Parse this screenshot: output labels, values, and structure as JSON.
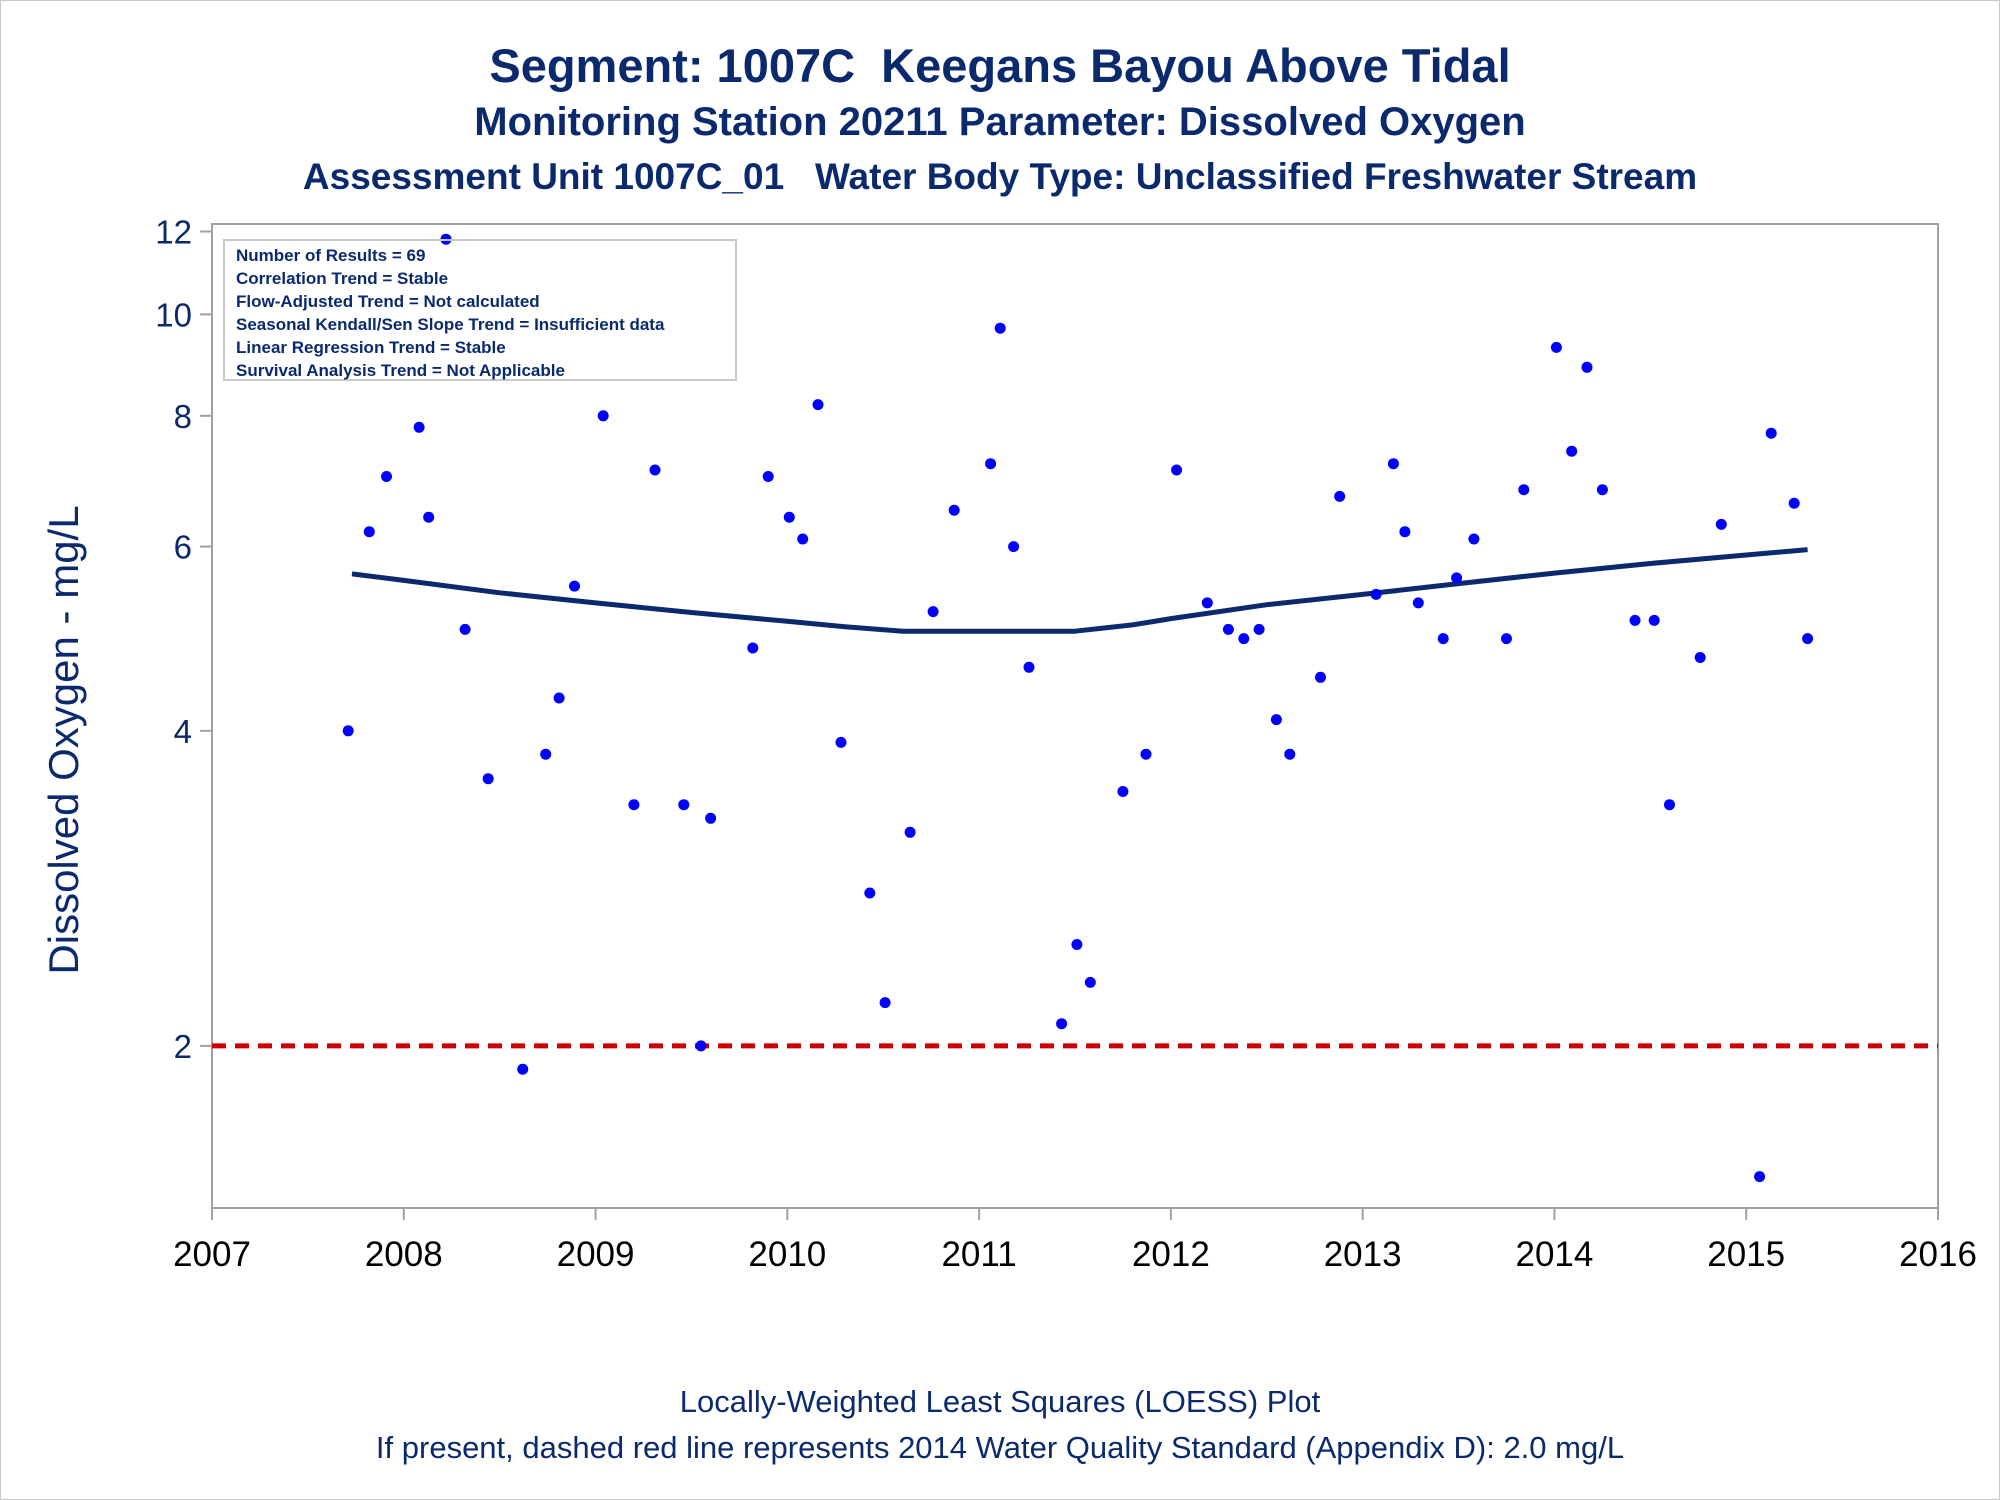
{
  "titles": {
    "line1": "Segment: 1007C  Keegans Bayou Above Tidal",
    "line2": "Monitoring Station 20211 Parameter: Dissolved Oxygen",
    "line3": "Assessment Unit 1007C_01   Water Body Type: Unclassified Freshwater Stream"
  },
  "footer": {
    "line1": "Locally-Weighted Least Squares (LOESS) Plot",
    "line2": "If present, dashed red line represents 2014 Water Quality Standard (Appendix D): 2.0 mg/L"
  },
  "stats_box": [
    "Number of Results = 69",
    "Correlation Trend = Stable",
    "Flow-Adjusted Trend = Not calculated",
    "Seasonal Kendall/Sen Slope Trend = Insufficient data",
    "Linear Regression Trend = Stable",
    "Survival Analysis Trend = Not Applicable"
  ],
  "colors": {
    "text": "#0b2a6e",
    "points": "#0000ff",
    "loess": "#0b2a6e",
    "standard_line": "#cc0000",
    "axis": "#a0a0a0"
  },
  "chart_data": {
    "type": "scatter",
    "ylabel": "Dissolved Oxygen - mg/L",
    "xlabel": "",
    "y_scale": "log",
    "ylim": [
      1.4,
      12.2
    ],
    "xlim": [
      2007,
      2016
    ],
    "y_ticks": [
      2,
      4,
      6,
      8,
      10,
      12
    ],
    "x_ticks": [
      2007,
      2008,
      2009,
      2010,
      2011,
      2012,
      2013,
      2014,
      2015,
      2016
    ],
    "standard_line": {
      "value": 2.0,
      "style": "dashed"
    },
    "points": [
      {
        "x": 2007.71,
        "y": 4.0
      },
      {
        "x": 2007.82,
        "y": 6.2
      },
      {
        "x": 2007.91,
        "y": 7.0
      },
      {
        "x": 2008.08,
        "y": 7.8
      },
      {
        "x": 2008.13,
        "y": 6.4
      },
      {
        "x": 2008.22,
        "y": 11.8
      },
      {
        "x": 2008.32,
        "y": 5.0
      },
      {
        "x": 2008.44,
        "y": 3.6
      },
      {
        "x": 2008.62,
        "y": 1.9
      },
      {
        "x": 2008.74,
        "y": 3.8
      },
      {
        "x": 2008.81,
        "y": 4.3
      },
      {
        "x": 2008.89,
        "y": 5.5
      },
      {
        "x": 2009.04,
        "y": 8.0
      },
      {
        "x": 2009.2,
        "y": 3.4
      },
      {
        "x": 2009.31,
        "y": 7.1
      },
      {
        "x": 2009.46,
        "y": 3.4
      },
      {
        "x": 2009.55,
        "y": 2.0
      },
      {
        "x": 2009.6,
        "y": 3.3
      },
      {
        "x": 2009.82,
        "y": 4.8
      },
      {
        "x": 2009.9,
        "y": 7.0
      },
      {
        "x": 2010.01,
        "y": 6.4
      },
      {
        "x": 2010.08,
        "y": 6.1
      },
      {
        "x": 2010.16,
        "y": 8.2
      },
      {
        "x": 2010.28,
        "y": 3.9
      },
      {
        "x": 2010.43,
        "y": 2.8
      },
      {
        "x": 2010.51,
        "y": 2.2
      },
      {
        "x": 2010.64,
        "y": 3.2
      },
      {
        "x": 2010.76,
        "y": 5.2
      },
      {
        "x": 2010.87,
        "y": 6.5
      },
      {
        "x": 2011.06,
        "y": 7.2
      },
      {
        "x": 2011.11,
        "y": 9.7
      },
      {
        "x": 2011.18,
        "y": 6.0
      },
      {
        "x": 2011.26,
        "y": 4.6
      },
      {
        "x": 2011.43,
        "y": 2.1
      },
      {
        "x": 2011.51,
        "y": 2.5
      },
      {
        "x": 2011.58,
        "y": 2.3
      },
      {
        "x": 2011.75,
        "y": 3.5
      },
      {
        "x": 2011.87,
        "y": 3.8
      },
      {
        "x": 2012.03,
        "y": 7.1
      },
      {
        "x": 2012.19,
        "y": 5.3
      },
      {
        "x": 2012.3,
        "y": 5.0
      },
      {
        "x": 2012.38,
        "y": 4.9
      },
      {
        "x": 2012.46,
        "y": 5.0
      },
      {
        "x": 2012.55,
        "y": 4.1
      },
      {
        "x": 2012.62,
        "y": 3.8
      },
      {
        "x": 2012.78,
        "y": 4.5
      },
      {
        "x": 2012.88,
        "y": 6.7
      },
      {
        "x": 2013.07,
        "y": 5.4
      },
      {
        "x": 2013.16,
        "y": 7.2
      },
      {
        "x": 2013.22,
        "y": 6.2
      },
      {
        "x": 2013.29,
        "y": 5.3
      },
      {
        "x": 2013.42,
        "y": 4.9
      },
      {
        "x": 2013.49,
        "y": 5.6
      },
      {
        "x": 2013.58,
        "y": 6.1
      },
      {
        "x": 2013.75,
        "y": 4.9
      },
      {
        "x": 2013.84,
        "y": 6.8
      },
      {
        "x": 2014.01,
        "y": 9.3
      },
      {
        "x": 2014.09,
        "y": 7.4
      },
      {
        "x": 2014.17,
        "y": 8.9
      },
      {
        "x": 2014.25,
        "y": 6.8
      },
      {
        "x": 2014.42,
        "y": 5.1
      },
      {
        "x": 2014.52,
        "y": 5.1
      },
      {
        "x": 2014.6,
        "y": 3.4
      },
      {
        "x": 2014.76,
        "y": 4.7
      },
      {
        "x": 2014.87,
        "y": 6.3
      },
      {
        "x": 2015.07,
        "y": 1.5
      },
      {
        "x": 2015.13,
        "y": 7.7
      },
      {
        "x": 2015.25,
        "y": 6.6
      },
      {
        "x": 2015.32,
        "y": 4.9
      }
    ],
    "loess": [
      {
        "x": 2007.73,
        "y": 5.65
      },
      {
        "x": 2008.0,
        "y": 5.57
      },
      {
        "x": 2008.5,
        "y": 5.42
      },
      {
        "x": 2009.0,
        "y": 5.3
      },
      {
        "x": 2009.5,
        "y": 5.19
      },
      {
        "x": 2010.0,
        "y": 5.09
      },
      {
        "x": 2010.3,
        "y": 5.03
      },
      {
        "x": 2010.6,
        "y": 4.98
      },
      {
        "x": 2011.0,
        "y": 4.98
      },
      {
        "x": 2011.5,
        "y": 4.98
      },
      {
        "x": 2011.8,
        "y": 5.05
      },
      {
        "x": 2012.0,
        "y": 5.12
      },
      {
        "x": 2012.5,
        "y": 5.28
      },
      {
        "x": 2013.0,
        "y": 5.4
      },
      {
        "x": 2013.5,
        "y": 5.53
      },
      {
        "x": 2014.0,
        "y": 5.66
      },
      {
        "x": 2014.5,
        "y": 5.78
      },
      {
        "x": 2015.0,
        "y": 5.89
      },
      {
        "x": 2015.32,
        "y": 5.96
      }
    ]
  }
}
